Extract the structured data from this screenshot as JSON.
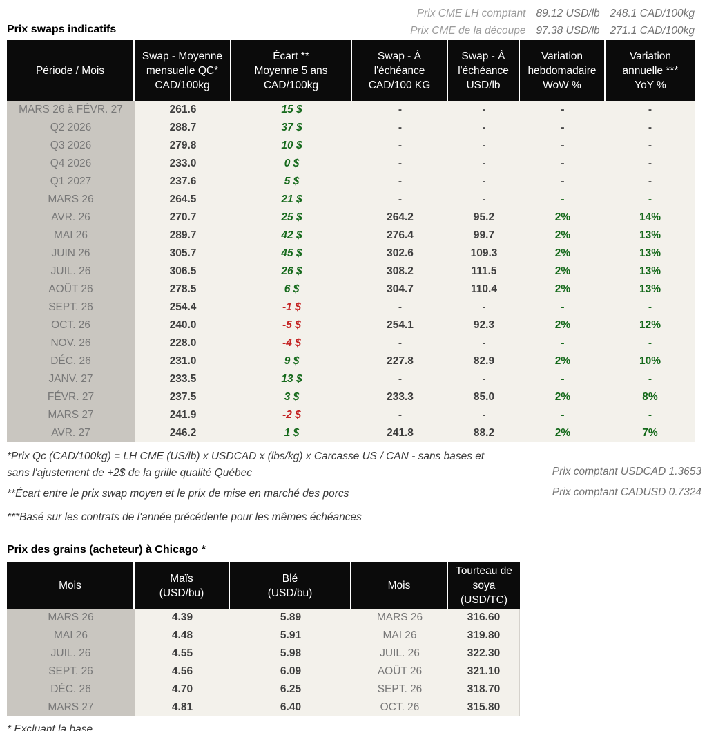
{
  "colors": {
    "header_bg": "#0b0b0b",
    "body_bg": "#f3f1eb",
    "period_column_bg": "#c9c6c0",
    "positive_green": "#15691b",
    "negative_red": "#c42222",
    "muted_text": "#787878"
  },
  "header": {
    "title": "Prix swaps indicatifs",
    "spot_lines": [
      {
        "label": "Prix CME LH comptant",
        "usd": "89.12 USD/lb",
        "cad": "248.1 CAD/100kg"
      },
      {
        "label": "Prix CME de la découpe",
        "usd": "97.38 USD/lb",
        "cad": "271.1 CAD/100kg"
      }
    ]
  },
  "swap_table": {
    "columns": [
      "Période / Mois",
      "Swap - Moyenne\nmensuelle QC*\nCAD/100kg",
      "Écart **\nMoyenne 5 ans\nCAD/100kg",
      "Swap - À\nl'échéance\nCAD/100 KG",
      "Swap - À\nl'échéance\nUSD/lb",
      "Variation\nhebdomadaire\nWoW %",
      "Variation\nannuelle ***\nYoY %"
    ],
    "rows": [
      {
        "period": "MARS 26 à  FÉVR. 27",
        "avg": "261.6",
        "ecart": "15 $",
        "ecart_color": "green",
        "cad": "-",
        "usd": "-",
        "wow": "-",
        "yoy": "-",
        "var_color": "gray"
      },
      {
        "period": "Q2 2026",
        "avg": "288.7",
        "ecart": "37 $",
        "ecart_color": "green",
        "cad": "-",
        "usd": "-",
        "wow": "-",
        "yoy": "-",
        "var_color": "gray"
      },
      {
        "period": "Q3 2026",
        "avg": "279.8",
        "ecart": "10 $",
        "ecart_color": "green",
        "cad": "-",
        "usd": "-",
        "wow": "-",
        "yoy": "-",
        "var_color": "gray"
      },
      {
        "period": "Q4 2026",
        "avg": "233.0",
        "ecart": "0 $",
        "ecart_color": "green",
        "cad": "-",
        "usd": "-",
        "wow": "-",
        "yoy": "-",
        "var_color": "gray"
      },
      {
        "period": "Q1 2027",
        "avg": "237.6",
        "ecart": "5 $",
        "ecart_color": "green",
        "cad": "-",
        "usd": "-",
        "wow": "-",
        "yoy": "-",
        "var_color": "gray"
      },
      {
        "period": "MARS 26",
        "avg": "264.5",
        "ecart": "21 $",
        "ecart_color": "green",
        "cad": "-",
        "usd": "-",
        "wow": "-",
        "yoy": "-",
        "var_color": "green"
      },
      {
        "period": "AVR. 26",
        "avg": "270.7",
        "ecart": "25 $",
        "ecart_color": "green",
        "cad": "264.2",
        "usd": "95.2",
        "wow": "2%",
        "yoy": "14%",
        "var_color": "green"
      },
      {
        "period": "MAI 26",
        "avg": "289.7",
        "ecart": "42 $",
        "ecart_color": "green",
        "cad": "276.4",
        "usd": "99.7",
        "wow": "2%",
        "yoy": "13%",
        "var_color": "green"
      },
      {
        "period": "JUIN 26",
        "avg": "305.7",
        "ecart": "45 $",
        "ecart_color": "green",
        "cad": "302.6",
        "usd": "109.3",
        "wow": "2%",
        "yoy": "13%",
        "var_color": "green"
      },
      {
        "period": "JUIL. 26",
        "avg": "306.5",
        "ecart": "26 $",
        "ecart_color": "green",
        "cad": "308.2",
        "usd": "111.5",
        "wow": "2%",
        "yoy": "13%",
        "var_color": "green"
      },
      {
        "period": "AOÛT 26",
        "avg": "278.5",
        "ecart": "6 $",
        "ecart_color": "green",
        "cad": "304.7",
        "usd": "110.4",
        "wow": "2%",
        "yoy": "13%",
        "var_color": "green"
      },
      {
        "period": "SEPT. 26",
        "avg": "254.4",
        "ecart": "-1 $",
        "ecart_color": "red",
        "cad": "-",
        "usd": "-",
        "wow": "-",
        "yoy": "-",
        "var_color": "green"
      },
      {
        "period": "OCT. 26",
        "avg": "240.0",
        "ecart": "-5 $",
        "ecart_color": "red",
        "cad": "254.1",
        "usd": "92.3",
        "wow": "2%",
        "yoy": "12%",
        "var_color": "green"
      },
      {
        "period": "NOV. 26",
        "avg": "228.0",
        "ecart": "-4 $",
        "ecart_color": "red",
        "cad": "-",
        "usd": "-",
        "wow": "-",
        "yoy": "-",
        "var_color": "green"
      },
      {
        "period": "DÉC. 26",
        "avg": "231.0",
        "ecart": "9 $",
        "ecart_color": "green",
        "cad": "227.8",
        "usd": "82.9",
        "wow": "2%",
        "yoy": "10%",
        "var_color": "green"
      },
      {
        "period": "JANV. 27",
        "avg": "233.5",
        "ecart": "13 $",
        "ecart_color": "green",
        "cad": "-",
        "usd": "-",
        "wow": "-",
        "yoy": "-",
        "var_color": "green"
      },
      {
        "period": "FÉVR. 27",
        "avg": "237.5",
        "ecart": "3 $",
        "ecart_color": "green",
        "cad": "233.3",
        "usd": "85.0",
        "wow": "2%",
        "yoy": "8%",
        "var_color": "green"
      },
      {
        "period": "MARS 27",
        "avg": "241.9",
        "ecart": "-2 $",
        "ecart_color": "red",
        "cad": "-",
        "usd": "-",
        "wow": "-",
        "yoy": "-",
        "var_color": "green"
      },
      {
        "period": "AVR. 27",
        "avg": "246.2",
        "ecart": "1 $",
        "ecart_color": "green",
        "cad": "241.8",
        "usd": "88.2",
        "wow": "2%",
        "yoy": "7%",
        "var_color": "green"
      }
    ]
  },
  "footnotes": {
    "note1": "*Prix Qc (CAD/100kg) = LH CME (US/lb) x USDCAD x (lbs/kg) x Carcasse US / CAN - sans bases et sans l'ajustement de +2$ de la grille qualité Québec",
    "note2": "**Écart entre le prix swap moyen et le prix de mise en marché des porcs",
    "note3": "***Basé sur les contrats de l'année précédente pour les mêmes échéances",
    "fx_usdcad": "Prix comptant USDCAD 1.3653",
    "fx_cadusd": "Prix comptant CADUSD 0.7324"
  },
  "grain": {
    "title": "Prix des grains (acheteur) à Chicago *",
    "columns": [
      "Mois",
      "Maïs\n(USD/bu)",
      "Blé\n(USD/bu)",
      "Mois",
      "Tourteau de\nsoya\n(USD/TC)"
    ],
    "rows": [
      {
        "mois1": "MARS 26",
        "mais": "4.39",
        "ble": "5.89",
        "mois2": "MARS 26",
        "tourteau": "316.60"
      },
      {
        "mois1": "MAI 26",
        "mais": "4.48",
        "ble": "5.91",
        "mois2": "MAI 26",
        "tourteau": "319.80"
      },
      {
        "mois1": "JUIL. 26",
        "mais": "4.55",
        "ble": "5.98",
        "mois2": "JUIL. 26",
        "tourteau": "322.30"
      },
      {
        "mois1": "SEPT. 26",
        "mais": "4.56",
        "ble": "6.09",
        "mois2": "AOÛT 26",
        "tourteau": "321.10"
      },
      {
        "mois1": "DÉC. 26",
        "mais": "4.70",
        "ble": "6.25",
        "mois2": "SEPT. 26",
        "tourteau": "318.70"
      },
      {
        "mois1": "MARS 27",
        "mais": "4.81",
        "ble": "6.40",
        "mois2": "OCT. 26",
        "tourteau": "315.80"
      }
    ],
    "footnote": "* Excluant la base"
  }
}
